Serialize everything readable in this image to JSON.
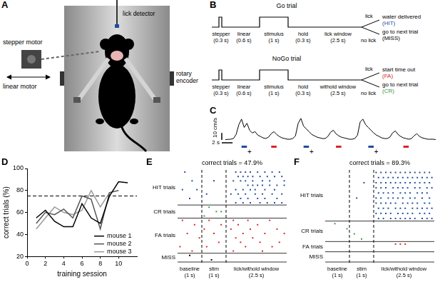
{
  "diagram_A": {
    "panel": "A",
    "labels": {
      "stepper_motor": "stepper motor",
      "linear_motor": "linear motor",
      "lick_detector": "lick detector",
      "rotary_encoder": "rotary encoder"
    }
  },
  "diagram_B": {
    "panel": "B",
    "trials": [
      {
        "title": "Go trial",
        "segments": [
          [
            "stepper",
            "(0.3 s)"
          ],
          [
            "linear",
            "(0.6 s)"
          ],
          [
            "stimulus",
            "(1 s)"
          ],
          [
            "hold",
            "(0.3 s)"
          ],
          [
            "lick window",
            "(2.5 s)"
          ]
        ],
        "branches": [
          {
            "label": "lick",
            "outcome": "water delivered",
            "code": "(HIT)",
            "color": "#1f4e9c"
          },
          {
            "label": "no lick",
            "outcome": "go to next trial",
            "code": "(MISS)",
            "color": "#000000"
          }
        ]
      },
      {
        "title": "NoGo trial",
        "segments": [
          [
            "stepper",
            "(0.3 s)"
          ],
          [
            "linear",
            "(0.6 s)"
          ],
          [
            "stimulus",
            "(1 s)"
          ],
          [
            "hold",
            "(0.3 s)"
          ],
          [
            "withold window",
            "(2.5 s)"
          ]
        ],
        "branches": [
          {
            "label": "lick",
            "outcome": "start time out",
            "code": "(FA)",
            "color": "#d62728"
          },
          {
            "label": "no lick",
            "outcome": "go to next trial",
            "code": "(CR)",
            "color": "#3a9a3a"
          }
        ]
      }
    ]
  },
  "chart_data": [
    {
      "panel": "C",
      "type": "line",
      "color": "#000000",
      "x": [
        0,
        0.5,
        1,
        1.5,
        2,
        2.5,
        3,
        3.5,
        4,
        4.5,
        5,
        5.5,
        6,
        6.5,
        7,
        7.5,
        8,
        8.5,
        9,
        9.5,
        10,
        10.5,
        11,
        11.5,
        12,
        12.5,
        13,
        13.5,
        14,
        14.5,
        15,
        15.5,
        16,
        16.5,
        17,
        17.5,
        18,
        18.5,
        19,
        19.5,
        20,
        20.5,
        21,
        21.5,
        22,
        22.5,
        23,
        23.5,
        24,
        24.5,
        25,
        25.5,
        26,
        26.5,
        27,
        27.5,
        28,
        28.5,
        29,
        29.5,
        30,
        30.5,
        31,
        31.5,
        32,
        32.5,
        33,
        33.5,
        34,
        34.5,
        35,
        35.5,
        36,
        36.5,
        37,
        37.5,
        38,
        38.5,
        39
      ],
      "values": [
        0.5,
        0.8,
        1,
        2,
        8,
        22,
        30,
        18,
        24,
        14,
        10,
        12,
        7,
        5,
        3,
        2,
        4,
        9,
        12,
        8,
        5,
        3,
        2,
        1,
        1,
        2,
        6,
        24,
        31,
        20,
        16,
        12,
        8,
        6,
        4,
        3,
        2,
        2,
        5,
        11,
        14,
        9,
        6,
        4,
        3,
        2,
        1,
        1,
        2,
        7,
        26,
        30,
        22,
        18,
        14,
        10,
        7,
        5,
        3,
        2,
        2,
        4,
        10,
        13,
        8,
        5,
        3,
        2,
        1,
        2,
        6,
        9,
        5,
        3,
        2,
        1,
        1,
        1,
        0.5
      ],
      "xlim": [
        0,
        39
      ],
      "ylim": [
        0,
        35
      ],
      "tick_labels": false,
      "grid": false,
      "scale_bars": [
        {
          "axis": "y",
          "value": 10,
          "label": "10 cm/s"
        },
        {
          "axis": "x",
          "value": 2,
          "label": "2 s"
        }
      ],
      "events": [
        {
          "color": "#1f4e9c",
          "starts": [
            3,
            14.5,
            26.5
          ],
          "duration": 1
        },
        {
          "color": "#d62728",
          "starts": [
            8.5,
            20.5,
            33
          ],
          "duration": 1
        }
      ],
      "rewards": {
        "label": "+",
        "x": [
          4.5,
          16,
          28
        ]
      }
    },
    {
      "panel": "D",
      "type": "line",
      "x_label": "training session",
      "y_label": "correct trials (%)",
      "series": [
        {
          "name": "mouse 1",
          "color": "#000000",
          "x": [
            1,
            2,
            3,
            4,
            5,
            6,
            7,
            8,
            9,
            10,
            11
          ],
          "values": [
            55,
            62,
            52,
            47,
            47,
            68,
            55,
            50,
            75,
            88,
            87
          ]
        },
        {
          "name": "mouse 2",
          "color": "#555555",
          "x": [
            1,
            2,
            3,
            4,
            5,
            6,
            7,
            8,
            9,
            10
          ],
          "values": [
            50,
            60,
            58,
            63,
            55,
            75,
            72,
            45,
            78,
            80
          ]
        },
        {
          "name": "mouse 3",
          "color": "#999999",
          "x": [
            1,
            2,
            3,
            4,
            5,
            6,
            7,
            8,
            9
          ],
          "values": [
            45,
            55,
            65,
            60,
            58,
            62,
            80,
            65,
            78
          ]
        }
      ],
      "xlim": [
        0,
        12
      ],
      "xticks": [
        0,
        2,
        4,
        6,
        8,
        10
      ],
      "ylim": [
        20,
        100
      ],
      "yticks": [
        20,
        40,
        60,
        80,
        100
      ],
      "reference_line": 75,
      "legend": "lower right",
      "grid": false
    },
    {
      "panel": "E",
      "type": "raster",
      "title": "correct trials = 47.9%",
      "xlim": [
        0,
        4.5
      ],
      "dividers": [
        1,
        2
      ],
      "segment_labels": [
        [
          "baseline",
          "(1 s)"
        ],
        [
          "stim",
          "(1 s)"
        ],
        [
          "lick/withold window",
          "(2.5 s)"
        ]
      ],
      "tick_labels": false,
      "groups": [
        {
          "name": "HIT trials",
          "color": "#1f4e9c",
          "trials": [
            [
              0.3,
              2.4,
              2.6,
              2.8,
              3.0,
              3.3,
              3.6,
              3.9,
              4.2
            ],
            [
              2.5,
              2.7,
              2.9,
              3.1,
              3.4,
              3.7,
              4.0,
              4.3
            ],
            [
              0.6,
              1.5,
              2.3,
              2.6,
              2.8,
              3.1,
              3.5,
              3.8,
              4.4
            ],
            [
              2.9,
              3.1,
              3.3,
              3.5,
              3.8,
              4.1,
              4.4
            ],
            [
              0.2,
              0.8,
              2.4,
              2.7,
              3.0,
              3.2,
              3.6,
              4.0
            ],
            [
              1.2,
              2.2,
              2.5,
              2.8,
              3.2,
              3.5,
              3.9,
              4.3
            ],
            [
              0.5,
              2.6,
              2.9,
              3.3,
              3.6,
              4.1
            ],
            [
              2.4,
              2.7,
              3.0,
              3.4,
              3.7,
              4.0,
              4.3
            ]
          ]
        },
        {
          "name": "CR trials",
          "color": "#3a9a3a",
          "trials": [
            [
              1.3
            ],
            [
              1.6,
              1.8
            ],
            [
              1.1
            ]
          ]
        },
        {
          "name": "FA trials",
          "color": "#d62728",
          "trials": [
            [
              0.2,
              1.3,
              2.3,
              2.9,
              3.8
            ],
            [
              0.7,
              1.8,
              2.5,
              3.3
            ],
            [
              1.1,
              2.2,
              3.0,
              4.1
            ],
            [
              0.4,
              1.5,
              2.7,
              3.6,
              4.4
            ],
            [
              0.9,
              2.4,
              3.1
            ],
            [
              1.7,
              2.6,
              3.4,
              4.2
            ],
            [
              0.1,
              1.2,
              2.8,
              3.9
            ],
            [
              0.6,
              2.3,
              3.5
            ]
          ]
        },
        {
          "name": "MISS",
          "color": "#000000",
          "trials": [
            [
              0.5
            ],
            [
              1.4
            ]
          ]
        }
      ]
    },
    {
      "panel": "F",
      "type": "raster",
      "title": "correct trials = 89.3%",
      "xlim": [
        0,
        4.5
      ],
      "dividers": [
        1,
        2
      ],
      "segment_labels": [
        [
          "baseline",
          "(1 s)"
        ],
        [
          "stim",
          "(1 s)"
        ],
        [
          "lick/withold window",
          "(2.5 s)"
        ]
      ],
      "tick_labels": false,
      "groups": [
        {
          "name": "HIT trials",
          "color": "#1f4e9c",
          "trials": [
            [
              2.1,
              2.3,
              2.5,
              2.7,
              2.9,
              3.1,
              3.3,
              3.5,
              3.7,
              3.9,
              4.1,
              4.3
            ],
            [
              2.2,
              2.4,
              2.6,
              2.8,
              3.0,
              3.2,
              3.4,
              3.6,
              3.8,
              4.0,
              4.2,
              4.4
            ],
            [
              1.6,
              2.1,
              2.3,
              2.5,
              2.7,
              2.9,
              3.1,
              3.3,
              3.5,
              3.7,
              3.9,
              4.1,
              4.3
            ],
            [
              2.1,
              2.3,
              2.5,
              2.8,
              3.0,
              3.2,
              3.4,
              3.7,
              3.9,
              4.2,
              4.4
            ],
            [
              2.2,
              2.4,
              2.6,
              2.8,
              3.1,
              3.3,
              3.5,
              3.8,
              4.0,
              4.2
            ],
            [
              1.3,
              2.1,
              2.3,
              2.6,
              2.8,
              3.0,
              3.2,
              3.5,
              3.7,
              4.0,
              4.3
            ],
            [
              2.1,
              2.3,
              2.5,
              2.7,
              2.9,
              3.2,
              3.4,
              3.6,
              3.8,
              4.1,
              4.3
            ],
            [
              2.2,
              2.4,
              2.6,
              2.9,
              3.1,
              3.3,
              3.6,
              3.8,
              4.0,
              4.2,
              4.4
            ],
            [
              2.1,
              2.3,
              2.5,
              2.7,
              3.0,
              3.2,
              3.4,
              3.6,
              3.9,
              4.1,
              4.3
            ],
            [
              2.2,
              2.4,
              2.7,
              2.9,
              3.1,
              3.3,
              3.5,
              3.7,
              4.0,
              4.2,
              4.4
            ]
          ]
        },
        {
          "name": "CR trials",
          "color": "#3a9a3a",
          "trials": [
            [
              0.4
            ],
            [
              0.9
            ],
            [
              1.2
            ],
            [
              1.5
            ]
          ]
        },
        {
          "name": "FA trials",
          "color": "#d62728",
          "trials": [
            [
              2.9,
              3.1,
              3.3
            ]
          ]
        },
        {
          "name": "MISS",
          "color": "#000000",
          "trials": [
            []
          ]
        }
      ]
    }
  ]
}
